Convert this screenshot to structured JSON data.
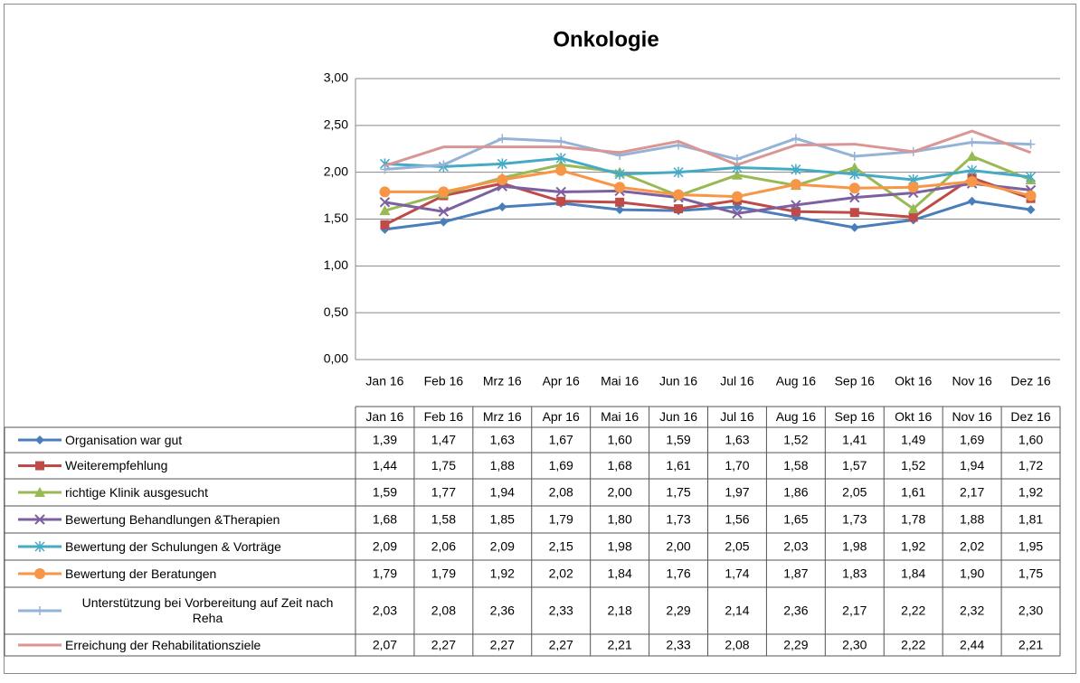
{
  "chart_data": {
    "type": "line",
    "title": "Onkologie",
    "categories": [
      "Jan 16",
      "Feb 16",
      "Mrz 16",
      "Apr 16",
      "Mai 16",
      "Jun 16",
      "Jul 16",
      "Aug 16",
      "Sep 16",
      "Okt 16",
      "Nov 16",
      "Dez 16"
    ],
    "ylim": [
      0,
      3
    ],
    "yticks": [
      {
        "value": 0,
        "label": "0,00"
      },
      {
        "value": 0.5,
        "label": "0,50"
      },
      {
        "value": 1,
        "label": "1,00"
      },
      {
        "value": 1.5,
        "label": "1,50"
      },
      {
        "value": 2,
        "label": "2,00"
      },
      {
        "value": 2.5,
        "label": "2,50"
      },
      {
        "value": 3,
        "label": "3,00"
      }
    ],
    "grid": true,
    "series": [
      {
        "name": "Organisation war gut",
        "color": "#4a7ebb",
        "marker": "diamond",
        "values": [
          1.39,
          1.47,
          1.63,
          1.67,
          1.6,
          1.59,
          1.63,
          1.52,
          1.41,
          1.49,
          1.69,
          1.6
        ],
        "value_labels": [
          "1,39",
          "1,47",
          "1,63",
          "1,67",
          "1,60",
          "1,59",
          "1,63",
          "1,52",
          "1,41",
          "1,49",
          "1,69",
          "1,60"
        ]
      },
      {
        "name": "Weiterempfehlung",
        "color": "#be4b48",
        "marker": "square",
        "values": [
          1.44,
          1.75,
          1.88,
          1.69,
          1.68,
          1.61,
          1.7,
          1.58,
          1.57,
          1.52,
          1.94,
          1.72
        ],
        "value_labels": [
          "1,44",
          "1,75",
          "1,88",
          "1,69",
          "1,68",
          "1,61",
          "1,70",
          "1,58",
          "1,57",
          "1,52",
          "1,94",
          "1,72"
        ]
      },
      {
        "name": "richtige Klinik ausgesucht",
        "color": "#98b954",
        "marker": "triangle",
        "values": [
          1.59,
          1.77,
          1.94,
          2.08,
          2.0,
          1.75,
          1.97,
          1.86,
          2.05,
          1.61,
          2.17,
          1.92
        ],
        "value_labels": [
          "1,59",
          "1,77",
          "1,94",
          "2,08",
          "2,00",
          "1,75",
          "1,97",
          "1,86",
          "2,05",
          "1,61",
          "2,17",
          "1,92"
        ]
      },
      {
        "name": "Bewertung Behandlungen &Therapien",
        "color": "#7d60a0",
        "marker": "x",
        "values": [
          1.68,
          1.58,
          1.85,
          1.79,
          1.8,
          1.73,
          1.56,
          1.65,
          1.73,
          1.78,
          1.88,
          1.81
        ],
        "value_labels": [
          "1,68",
          "1,58",
          "1,85",
          "1,79",
          "1,80",
          "1,73",
          "1,56",
          "1,65",
          "1,73",
          "1,78",
          "1,88",
          "1,81"
        ]
      },
      {
        "name": "Bewertung der Schulungen & Vorträge",
        "color": "#46aac5",
        "marker": "star",
        "values": [
          2.09,
          2.06,
          2.09,
          2.15,
          1.98,
          2.0,
          2.05,
          2.03,
          1.98,
          1.92,
          2.02,
          1.95
        ],
        "value_labels": [
          "2,09",
          "2,06",
          "2,09",
          "2,15",
          "1,98",
          "2,00",
          "2,05",
          "2,03",
          "1,98",
          "1,92",
          "2,02",
          "1,95"
        ]
      },
      {
        "name": "Bewertung der Beratungen",
        "color": "#f79646",
        "marker": "circle",
        "values": [
          1.79,
          1.79,
          1.92,
          2.02,
          1.84,
          1.76,
          1.74,
          1.87,
          1.83,
          1.84,
          1.9,
          1.75
        ],
        "value_labels": [
          "1,79",
          "1,79",
          "1,92",
          "2,02",
          "1,84",
          "1,76",
          "1,74",
          "1,87",
          "1,83",
          "1,84",
          "1,90",
          "1,75"
        ]
      },
      {
        "name": "Unterstützung bei Vorbereitung auf Zeit nach Reha",
        "color": "#95b3d7",
        "marker": "plus",
        "values": [
          2.03,
          2.08,
          2.36,
          2.33,
          2.18,
          2.29,
          2.14,
          2.36,
          2.17,
          2.22,
          2.32,
          2.3
        ],
        "value_labels": [
          "2,03",
          "2,08",
          "2,36",
          "2,33",
          "2,18",
          "2,29",
          "2,14",
          "2,36",
          "2,17",
          "2,22",
          "2,32",
          "2,30"
        ]
      },
      {
        "name": "Erreichung der Rehabilitationsziele",
        "color": "#d99694",
        "marker": "none",
        "values": [
          2.07,
          2.27,
          2.27,
          2.27,
          2.21,
          2.33,
          2.08,
          2.29,
          2.3,
          2.22,
          2.44,
          2.21
        ],
        "value_labels": [
          "2,07",
          "2,27",
          "2,27",
          "2,27",
          "2,21",
          "2,33",
          "2,08",
          "2,29",
          "2,30",
          "2,22",
          "2,44",
          "2,21"
        ]
      }
    ]
  }
}
